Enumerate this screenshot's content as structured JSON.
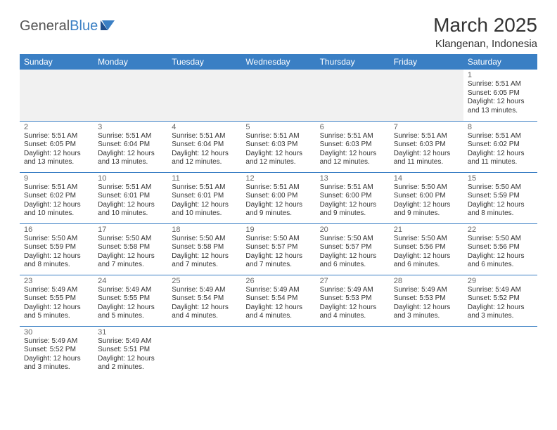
{
  "logo": {
    "general": "General",
    "blue": "Blue"
  },
  "title": "March 2025",
  "location": "Klangenan, Indonesia",
  "colors": {
    "header_bg": "#3a7fc4",
    "header_text": "#ffffff",
    "border": "#3a7fc4",
    "empty_bg": "#f1f1f1",
    "text": "#333333",
    "daynum": "#666666"
  },
  "weekdays": [
    "Sunday",
    "Monday",
    "Tuesday",
    "Wednesday",
    "Thursday",
    "Friday",
    "Saturday"
  ],
  "weeks": [
    [
      null,
      null,
      null,
      null,
      null,
      null,
      {
        "n": "1",
        "sr": "5:51 AM",
        "ss": "6:05 PM",
        "dl": "12 hours and 13 minutes."
      }
    ],
    [
      {
        "n": "2",
        "sr": "5:51 AM",
        "ss": "6:05 PM",
        "dl": "12 hours and 13 minutes."
      },
      {
        "n": "3",
        "sr": "5:51 AM",
        "ss": "6:04 PM",
        "dl": "12 hours and 13 minutes."
      },
      {
        "n": "4",
        "sr": "5:51 AM",
        "ss": "6:04 PM",
        "dl": "12 hours and 12 minutes."
      },
      {
        "n": "5",
        "sr": "5:51 AM",
        "ss": "6:03 PM",
        "dl": "12 hours and 12 minutes."
      },
      {
        "n": "6",
        "sr": "5:51 AM",
        "ss": "6:03 PM",
        "dl": "12 hours and 12 minutes."
      },
      {
        "n": "7",
        "sr": "5:51 AM",
        "ss": "6:03 PM",
        "dl": "12 hours and 11 minutes."
      },
      {
        "n": "8",
        "sr": "5:51 AM",
        "ss": "6:02 PM",
        "dl": "12 hours and 11 minutes."
      }
    ],
    [
      {
        "n": "9",
        "sr": "5:51 AM",
        "ss": "6:02 PM",
        "dl": "12 hours and 10 minutes."
      },
      {
        "n": "10",
        "sr": "5:51 AM",
        "ss": "6:01 PM",
        "dl": "12 hours and 10 minutes."
      },
      {
        "n": "11",
        "sr": "5:51 AM",
        "ss": "6:01 PM",
        "dl": "12 hours and 10 minutes."
      },
      {
        "n": "12",
        "sr": "5:51 AM",
        "ss": "6:00 PM",
        "dl": "12 hours and 9 minutes."
      },
      {
        "n": "13",
        "sr": "5:51 AM",
        "ss": "6:00 PM",
        "dl": "12 hours and 9 minutes."
      },
      {
        "n": "14",
        "sr": "5:50 AM",
        "ss": "6:00 PM",
        "dl": "12 hours and 9 minutes."
      },
      {
        "n": "15",
        "sr": "5:50 AM",
        "ss": "5:59 PM",
        "dl": "12 hours and 8 minutes."
      }
    ],
    [
      {
        "n": "16",
        "sr": "5:50 AM",
        "ss": "5:59 PM",
        "dl": "12 hours and 8 minutes."
      },
      {
        "n": "17",
        "sr": "5:50 AM",
        "ss": "5:58 PM",
        "dl": "12 hours and 7 minutes."
      },
      {
        "n": "18",
        "sr": "5:50 AM",
        "ss": "5:58 PM",
        "dl": "12 hours and 7 minutes."
      },
      {
        "n": "19",
        "sr": "5:50 AM",
        "ss": "5:57 PM",
        "dl": "12 hours and 7 minutes."
      },
      {
        "n": "20",
        "sr": "5:50 AM",
        "ss": "5:57 PM",
        "dl": "12 hours and 6 minutes."
      },
      {
        "n": "21",
        "sr": "5:50 AM",
        "ss": "5:56 PM",
        "dl": "12 hours and 6 minutes."
      },
      {
        "n": "22",
        "sr": "5:50 AM",
        "ss": "5:56 PM",
        "dl": "12 hours and 6 minutes."
      }
    ],
    [
      {
        "n": "23",
        "sr": "5:49 AM",
        "ss": "5:55 PM",
        "dl": "12 hours and 5 minutes."
      },
      {
        "n": "24",
        "sr": "5:49 AM",
        "ss": "5:55 PM",
        "dl": "12 hours and 5 minutes."
      },
      {
        "n": "25",
        "sr": "5:49 AM",
        "ss": "5:54 PM",
        "dl": "12 hours and 4 minutes."
      },
      {
        "n": "26",
        "sr": "5:49 AM",
        "ss": "5:54 PM",
        "dl": "12 hours and 4 minutes."
      },
      {
        "n": "27",
        "sr": "5:49 AM",
        "ss": "5:53 PM",
        "dl": "12 hours and 4 minutes."
      },
      {
        "n": "28",
        "sr": "5:49 AM",
        "ss": "5:53 PM",
        "dl": "12 hours and 3 minutes."
      },
      {
        "n": "29",
        "sr": "5:49 AM",
        "ss": "5:52 PM",
        "dl": "12 hours and 3 minutes."
      }
    ],
    [
      {
        "n": "30",
        "sr": "5:49 AM",
        "ss": "5:52 PM",
        "dl": "12 hours and 3 minutes."
      },
      {
        "n": "31",
        "sr": "5:49 AM",
        "ss": "5:51 PM",
        "dl": "12 hours and 2 minutes."
      },
      null,
      null,
      null,
      null,
      null
    ]
  ],
  "labels": {
    "sunrise": "Sunrise: ",
    "sunset": "Sunset: ",
    "daylight": "Daylight: "
  }
}
